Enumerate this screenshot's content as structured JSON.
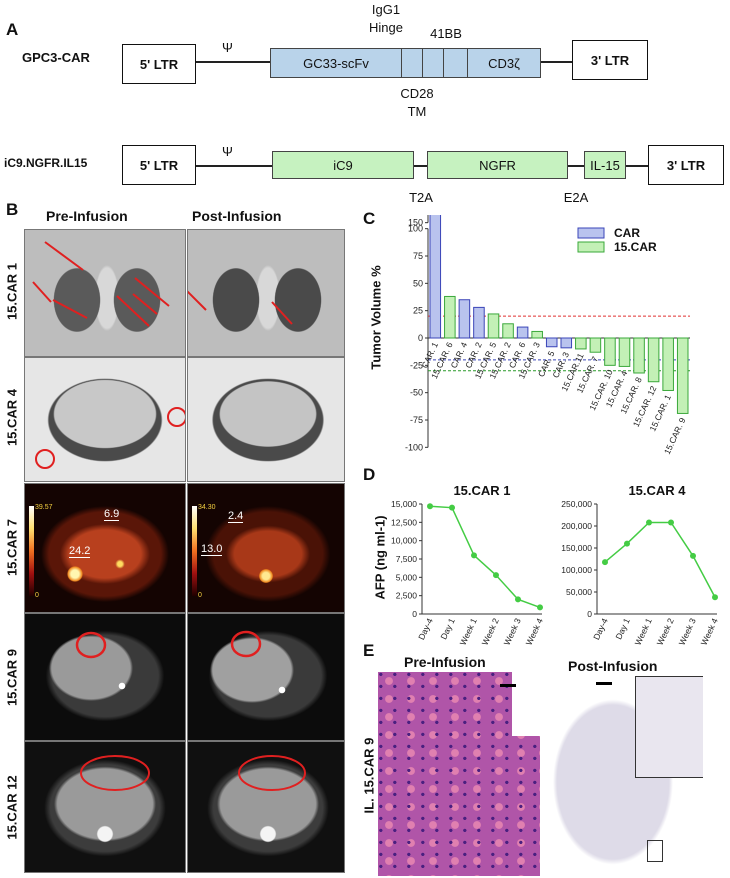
{
  "panelA": {
    "letter": "A",
    "construct1": {
      "name": "GPC3-CAR",
      "ltr5": "5' LTR",
      "psi": "Ψ",
      "segments": [
        "GC33-scFv",
        "",
        "",
        "",
        "CD3ζ"
      ],
      "label_igg1": "IgG1",
      "label_hinge": "Hinge",
      "label_41bb": "41BB",
      "label_cd28": "CD28",
      "label_tm": "TM",
      "ltr3": "3' LTR"
    },
    "construct2": {
      "name": "iC9.NGFR.IL15",
      "ltr5": "5' LTR",
      "psi": "Ψ",
      "segments": [
        "iC9",
        "NGFR",
        "IL-15"
      ],
      "label_t2a": "T2A",
      "label_e2a": "E2A",
      "ltr3": "3' LTR"
    }
  },
  "panelB": {
    "letter": "B",
    "col_pre": "Pre-Infusion",
    "col_post": "Post-Infusion",
    "rows": [
      "15.CAR 1",
      "15.CAR 4",
      "15.CAR 7",
      "15.CAR 9",
      "15.CAR 12"
    ],
    "pet_labels_pre": [
      "6.9",
      "24.2"
    ],
    "pet_labels_post": [
      "2.4",
      "13.0"
    ],
    "pet_scale_pre": [
      "39.57",
      "0"
    ],
    "pet_scale_post": [
      "34.30",
      "0"
    ]
  },
  "panelC": {
    "letter": "C",
    "ylabel": "Tumor Volume %",
    "legend_car": "CAR",
    "legend_15car": "15.CAR",
    "colors": {
      "car": "#b9c3ee",
      "car_edge": "#3a44b8",
      "car15": "#c3f0b6",
      "car15_edge": "#3aa83a",
      "red_line": "#e03030",
      "blue_line": "#3a44b8",
      "green_line": "#2a9a2a"
    }
  },
  "panelD": {
    "letter": "D",
    "ylabel": "AFP (ng ml-1)"
  },
  "panelE": {
    "letter": "E",
    "pre": "Pre-Infusion",
    "post": "Post-Infusion",
    "side": "IL. 15.CAR 9"
  },
  "chart_data": [
    {
      "type": "bar",
      "ylabel": "Tumor Volume %",
      "yticks": [
        -100,
        -75,
        -50,
        -25,
        0,
        25,
        50,
        75,
        100,
        150,
        200
      ],
      "ylim": [
        -100,
        200
      ],
      "axis_break": [
        100,
        150
      ],
      "reference_lines": [
        20,
        -20,
        -30
      ],
      "legend": "top-right",
      "categories": [
        "CAR. 1",
        "15.CAR. 6",
        "CAR. 4",
        "CAR. 2",
        "15.CAR. 5",
        "15.CAR. 2",
        "CAR. 6",
        "15.CAR. 3",
        "CAR. 5",
        "CAR. 3",
        "15.CAR.11",
        "15.CAR. 7",
        "15.CAR. 10",
        "15.CAR. 4",
        "15.CAR. 8",
        "15.CAR. 12",
        "15.CAR. 1",
        "15.CAR. 9"
      ],
      "groups": [
        "CAR",
        "15.CAR",
        "CAR",
        "CAR",
        "15.CAR",
        "15.CAR",
        "CAR",
        "15.CAR",
        "CAR",
        "CAR",
        "15.CAR",
        "15.CAR",
        "15.CAR",
        "15.CAR",
        "15.CAR",
        "15.CAR",
        "15.CAR",
        "15.CAR"
      ],
      "values": [
        180,
        38,
        35,
        28,
        22,
        13,
        10,
        6,
        -8,
        -9,
        -10,
        -13,
        -25,
        -26,
        -32,
        -40,
        -48,
        -69
      ],
      "series": [
        {
          "name": "CAR"
        },
        {
          "name": "15.CAR"
        }
      ]
    },
    {
      "type": "line",
      "title": "15.CAR 1",
      "ylabel": "AFP (ng ml-1)",
      "x": [
        "Day-4",
        "Day 1",
        "Week 1",
        "Week 2",
        "Week 3",
        "Week 4"
      ],
      "y": [
        14700,
        14500,
        8000,
        5300,
        2000,
        900
      ],
      "yticks": [
        0,
        2500,
        5000,
        7500,
        10000,
        12500,
        15000
      ],
      "yticklabels": [
        "0",
        "2,500",
        "5,000",
        "7,500",
        "10,000",
        "12,500",
        "15,000"
      ],
      "ylim": [
        0,
        15000
      ]
    },
    {
      "type": "line",
      "title": "15.CAR 4",
      "x": [
        "Day-4",
        "Day 1",
        "Week 1",
        "Week 2",
        "Week 3",
        "Week 4"
      ],
      "y": [
        118000,
        160000,
        208000,
        208000,
        132000,
        38000
      ],
      "yticks": [
        0,
        50000,
        100000,
        150000,
        200000,
        250000
      ],
      "yticklabels": [
        "0",
        "50,000",
        "100,000",
        "150,000",
        "200,000",
        "250,000"
      ],
      "ylim": [
        0,
        250000
      ]
    }
  ]
}
